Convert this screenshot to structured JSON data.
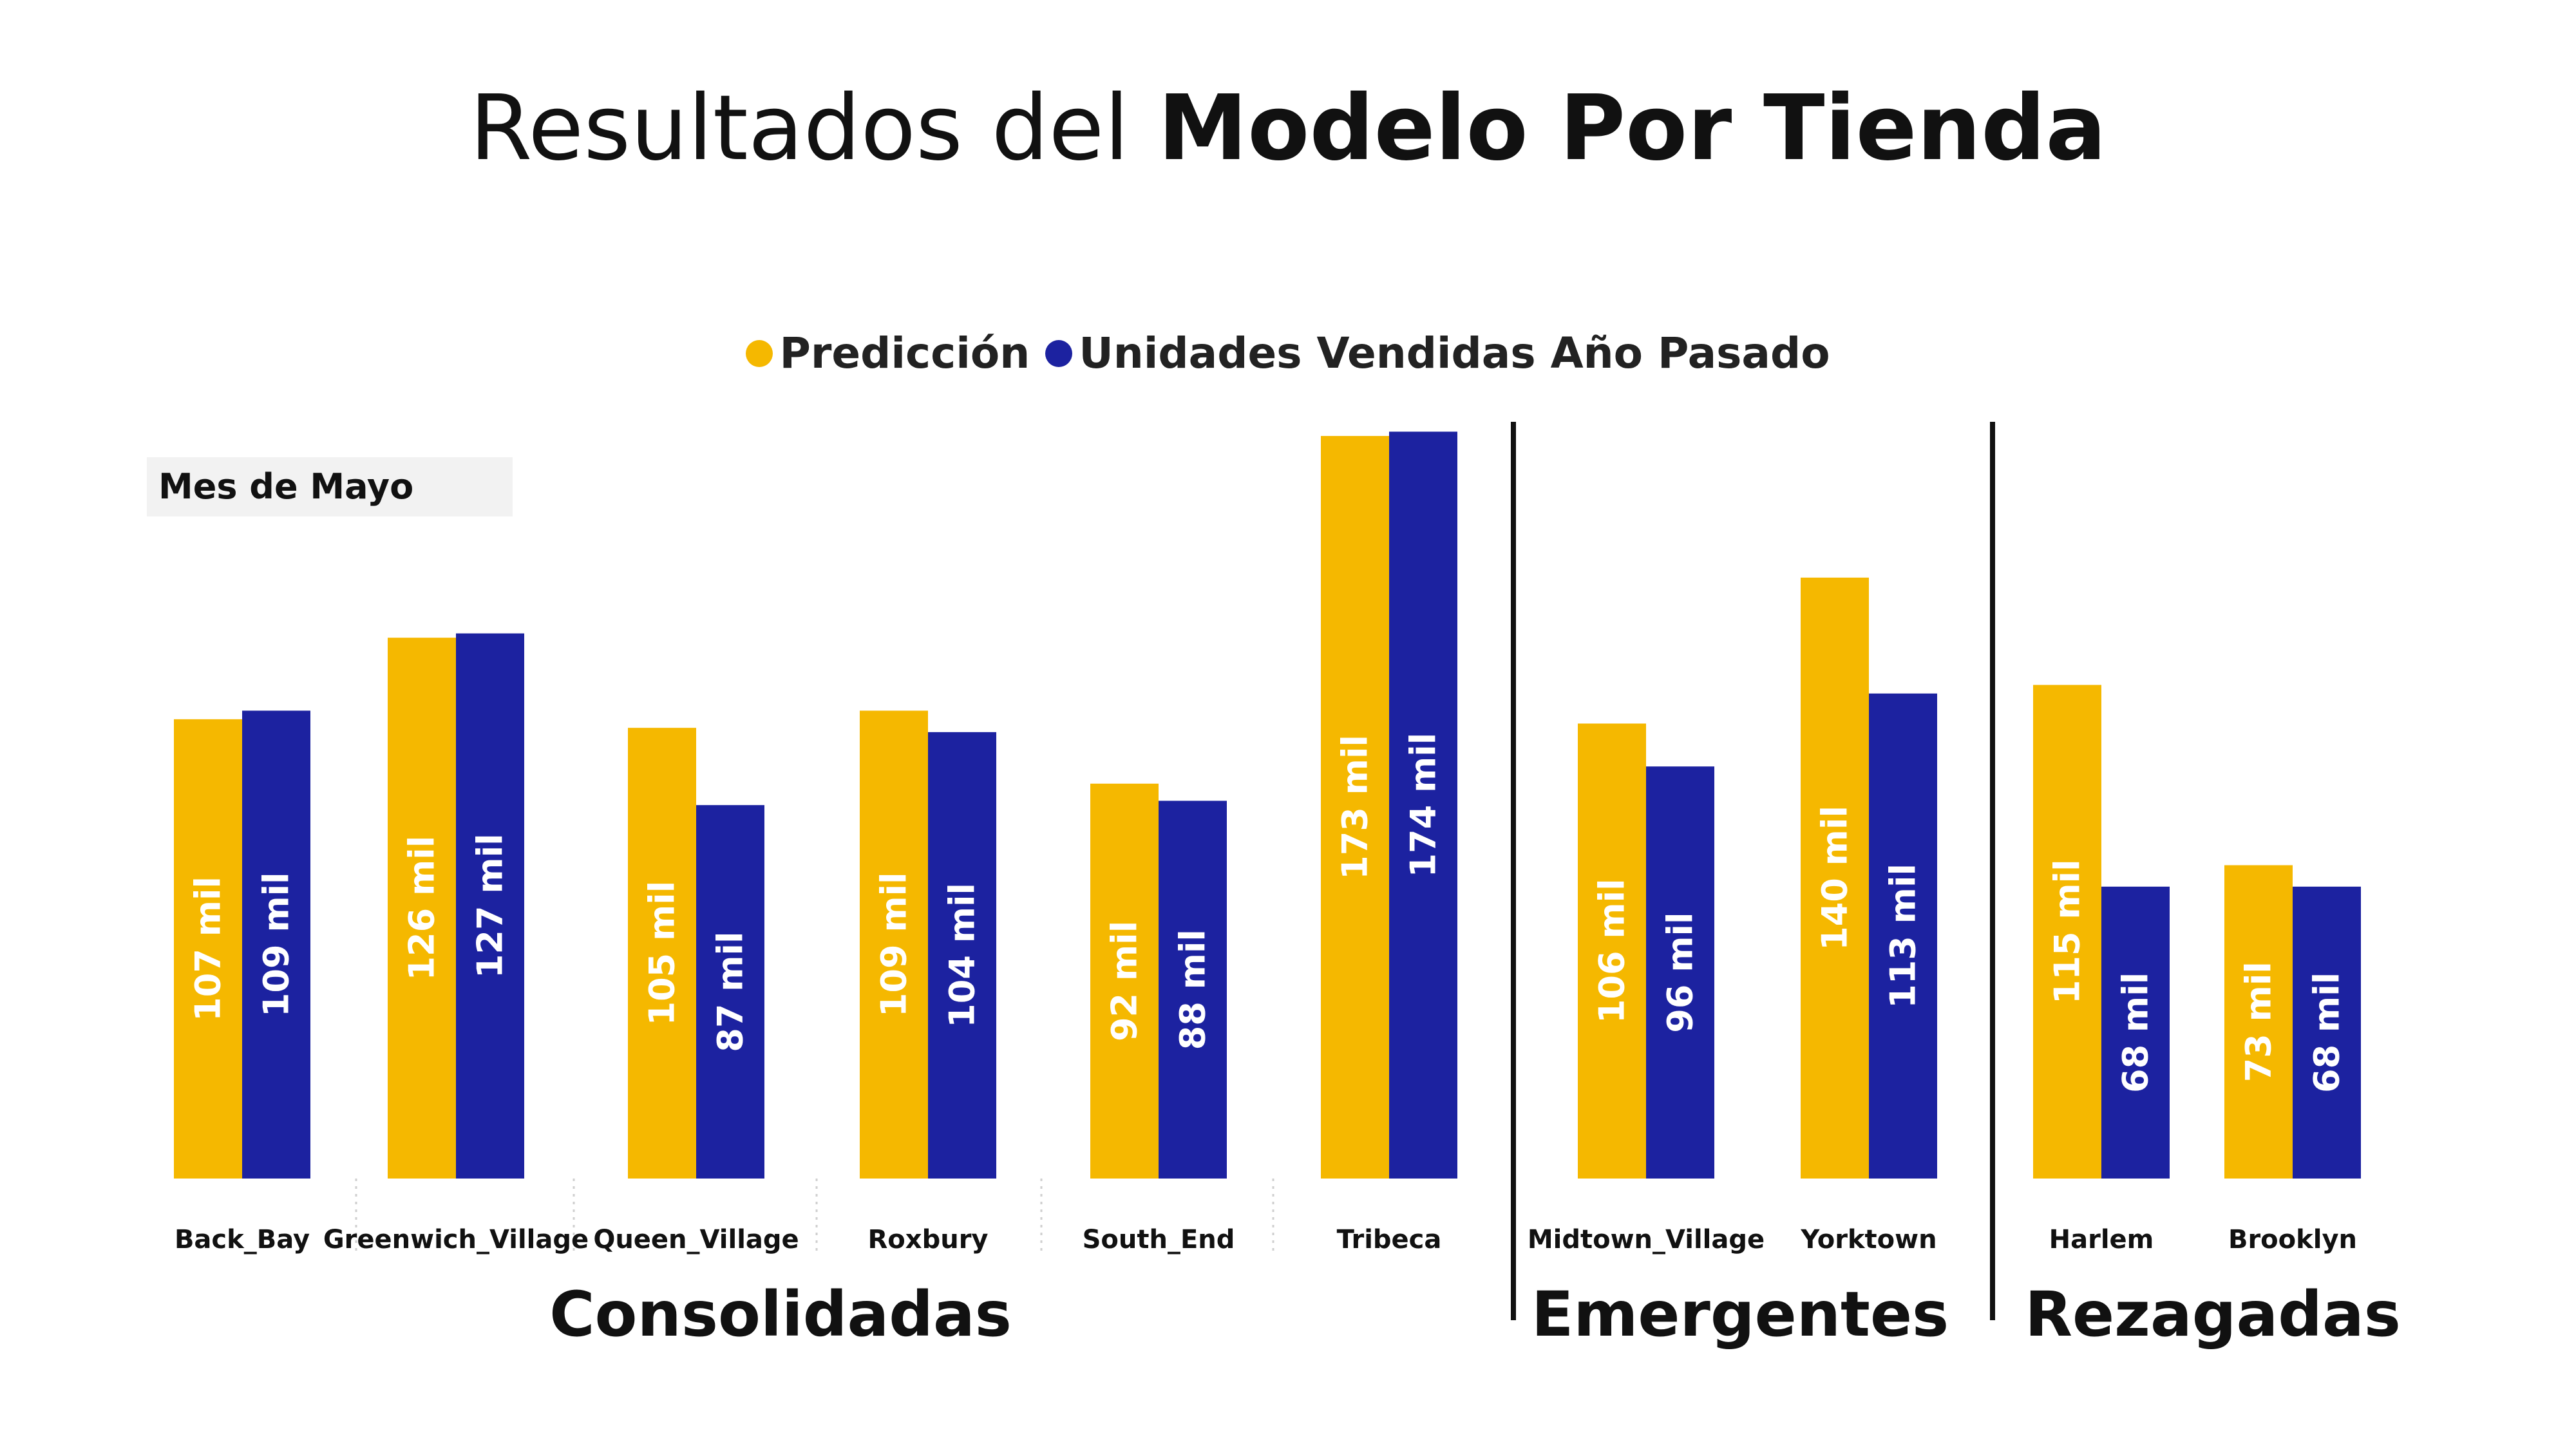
{
  "title": {
    "light": "Resultados del",
    "bold": "Modelo Por Tienda"
  },
  "period_label": "Mes de Mayo",
  "legend": [
    {
      "label": "Predicción",
      "color": "#F5B800"
    },
    {
      "label": "Unidades Vendidas Año Pasado",
      "color": "#1C22A0"
    }
  ],
  "groups": [
    {
      "label": "Consolidadas"
    },
    {
      "label": "Emergentes"
    },
    {
      "label": "Rezagadas"
    }
  ],
  "chart_data": {
    "type": "bar",
    "categories": [
      "Back_Bay",
      "Greenwich_Village",
      "Queen_Village",
      "Roxbury",
      "South_End",
      "Tribeca",
      "Midtown_Village",
      "Yorktown",
      "Harlem",
      "Brooklyn"
    ],
    "group_of_category": [
      "Consolidadas",
      "Consolidadas",
      "Consolidadas",
      "Consolidadas",
      "Consolidadas",
      "Consolidadas",
      "Emergentes",
      "Emergentes",
      "Rezagadas",
      "Rezagadas"
    ],
    "series": [
      {
        "name": "Predicción",
        "color": "#F5B800",
        "values": [
          107,
          126,
          105,
          109,
          92,
          173,
          106,
          140,
          115,
          73
        ],
        "labels": [
          "107 mil",
          "126 mil",
          "105 mil",
          "109 mil",
          "92 mil",
          "173 mil",
          "106 mil",
          "140 mil",
          "115 mil",
          "73 mil"
        ]
      },
      {
        "name": "Unidades Vendidas Año Pasado",
        "color": "#1C22A0",
        "values": [
          109,
          127,
          87,
          104,
          88,
          174,
          96,
          113,
          68,
          68
        ],
        "labels": [
          "109 mil",
          "127 mil",
          "87 mil",
          "104 mil",
          "88 mil",
          "174 mil",
          "96 mil",
          "113 mil",
          "68 mil",
          "68 mil"
        ]
      }
    ],
    "unit": "mil",
    "ylim": [
      0,
      174
    ],
    "grid": false,
    "legend_position": "top-center",
    "data_labels": "inside-bar-rotated"
  }
}
